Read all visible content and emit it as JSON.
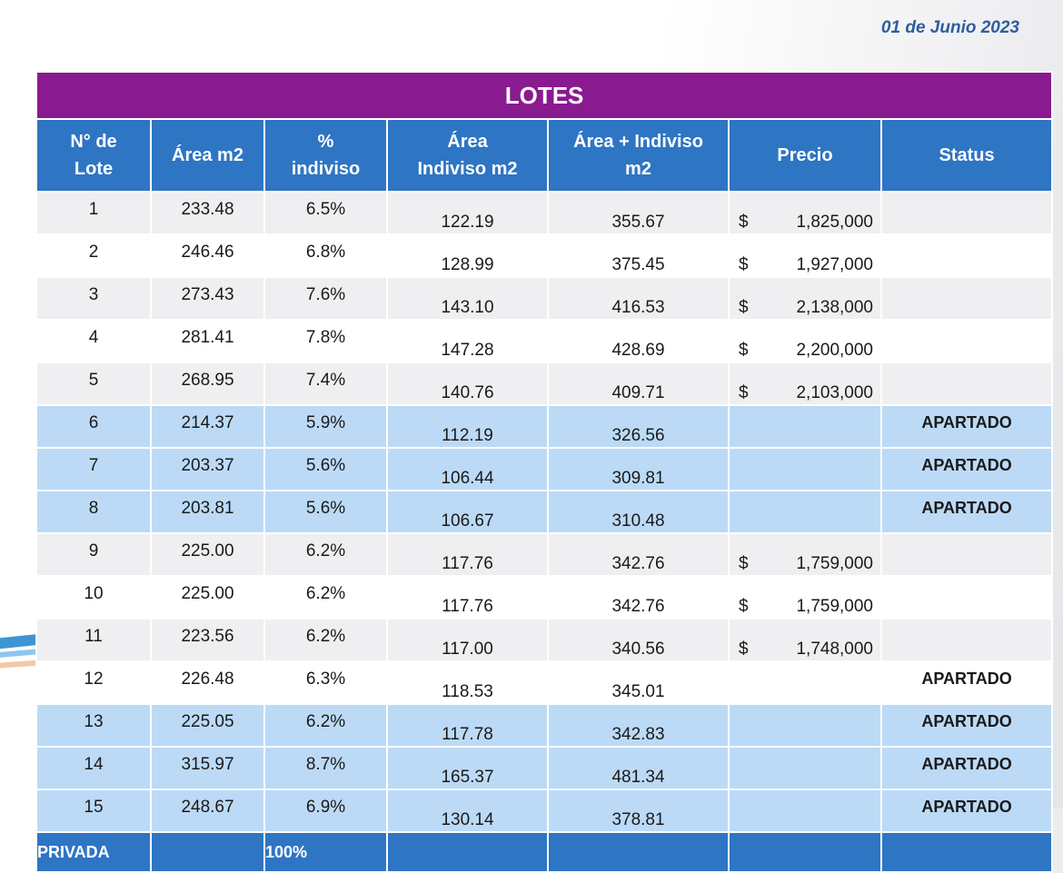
{
  "date": "01 de Junio  2023",
  "table": {
    "title": "LOTES",
    "headers": [
      [
        "N° de",
        "Lote"
      ],
      [
        "Área m2"
      ],
      [
        "%",
        "indiviso"
      ],
      [
        "Área",
        "Indiviso m2"
      ],
      [
        "Área + Indiviso",
        "m2"
      ],
      [
        "Precio"
      ],
      [
        "Status"
      ]
    ],
    "rows": [
      {
        "lote": "1",
        "area": "233.48",
        "indiviso": "6.5%",
        "area_indiviso": "122.19",
        "area_total": "355.67",
        "currency": "$",
        "precio": "1,825,000",
        "status": ""
      },
      {
        "lote": "2",
        "area": "246.46",
        "indiviso": "6.8%",
        "area_indiviso": "128.99",
        "area_total": "375.45",
        "currency": "$",
        "precio": "1,927,000",
        "status": ""
      },
      {
        "lote": "3",
        "area": "273.43",
        "indiviso": "7.6%",
        "area_indiviso": "143.10",
        "area_total": "416.53",
        "currency": "$",
        "precio": "2,138,000",
        "status": ""
      },
      {
        "lote": "4",
        "area": "281.41",
        "indiviso": "7.8%",
        "area_indiviso": "147.28",
        "area_total": "428.69",
        "currency": "$",
        "precio": "2,200,000",
        "status": ""
      },
      {
        "lote": "5",
        "area": "268.95",
        "indiviso": "7.4%",
        "area_indiviso": "140.76",
        "area_total": "409.71",
        "currency": "$",
        "precio": "2,103,000",
        "status": ""
      },
      {
        "lote": "6",
        "area": "214.37",
        "indiviso": "5.9%",
        "area_indiviso": "112.19",
        "area_total": "326.56",
        "currency": "",
        "precio": "",
        "status": "APARTADO"
      },
      {
        "lote": "7",
        "area": "203.37",
        "indiviso": "5.6%",
        "area_indiviso": "106.44",
        "area_total": "309.81",
        "currency": "",
        "precio": "",
        "status": "APARTADO"
      },
      {
        "lote": "8",
        "area": "203.81",
        "indiviso": "5.6%",
        "area_indiviso": "106.67",
        "area_total": "310.48",
        "currency": "",
        "precio": "",
        "status": "APARTADO"
      },
      {
        "lote": "9",
        "area": "225.00",
        "indiviso": "6.2%",
        "area_indiviso": "117.76",
        "area_total": "342.76",
        "currency": "$",
        "precio": "1,759,000",
        "status": ""
      },
      {
        "lote": "10",
        "area": "225.00",
        "indiviso": "6.2%",
        "area_indiviso": "117.76",
        "area_total": "342.76",
        "currency": "$",
        "precio": "1,759,000",
        "status": ""
      },
      {
        "lote": "11",
        "area": "223.56",
        "indiviso": "6.2%",
        "area_indiviso": "117.00",
        "area_total": "340.56",
        "currency": "$",
        "precio": "1,748,000",
        "status": ""
      },
      {
        "lote": "12",
        "area": "226.48",
        "indiviso": "6.3%",
        "area_indiviso": "118.53",
        "area_total": "345.01",
        "currency": "",
        "precio": "",
        "status": "APARTADO"
      },
      {
        "lote": "13",
        "area": "225.05",
        "indiviso": "6.2%",
        "area_indiviso": "117.78",
        "area_total": "342.83",
        "currency": "",
        "precio": "",
        "status": "APARTADO"
      },
      {
        "lote": "14",
        "area": "315.97",
        "indiviso": "8.7%",
        "area_indiviso": "165.37",
        "area_total": "481.34",
        "currency": "",
        "precio": "",
        "status": "APARTADO"
      },
      {
        "lote": "15",
        "area": "248.67",
        "indiviso": "6.9%",
        "area_indiviso": "130.14",
        "area_total": "378.81",
        "currency": "",
        "precio": "",
        "status": "APARTADO"
      }
    ],
    "row_styles": [
      "grey",
      "white",
      "grey",
      "white",
      "grey",
      "blue",
      "blue",
      "blue",
      "grey",
      "white",
      "grey",
      "white",
      "blue",
      "blue",
      "blue"
    ],
    "total": {
      "label": "PRIVADA",
      "indiviso": "100%"
    }
  },
  "colors": {
    "title_bg": "#891a8f",
    "header_bg": "#2e75c4",
    "reserved_bg": "#bcdaf6",
    "date_text": "#2e5d9f"
  }
}
